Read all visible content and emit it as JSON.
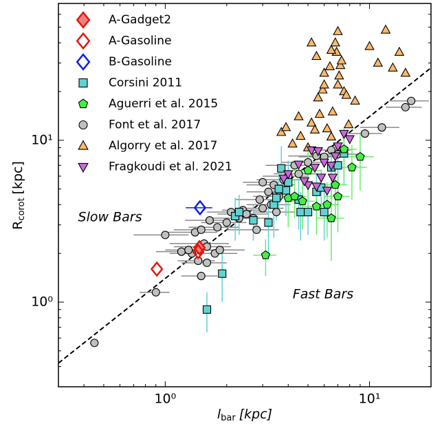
{
  "chart_data": {
    "type": "scatter",
    "xlabel": {
      "main": "l",
      "sub": "bar",
      "unit": "[kpc]"
    },
    "ylabel": {
      "main": "R",
      "sub": "corot",
      "unit": "[kpc]"
    },
    "xscale": "log",
    "yscale": "log",
    "xlim": [
      0.3,
      20
    ],
    "ylim": [
      0.3,
      70
    ],
    "xticks": [
      {
        "value": 1,
        "label": "10⁰"
      },
      {
        "value": 10,
        "label": "10¹"
      }
    ],
    "yticks": [
      {
        "value": 1,
        "label": "10⁰"
      },
      {
        "value": 10,
        "label": "10¹"
      }
    ],
    "xticks_minor": [
      0.4,
      0.5,
      0.6,
      0.7,
      0.8,
      0.9,
      2,
      3,
      4,
      5,
      6,
      7,
      8,
      9
    ],
    "yticks_minor": [
      0.4,
      0.5,
      0.6,
      0.7,
      0.8,
      0.9,
      2,
      3,
      4,
      5,
      6,
      7,
      8,
      9,
      20,
      30,
      40,
      50,
      60
    ],
    "legend": "upper left",
    "annotations": [
      {
        "text": "Slow Bars"
      },
      {
        "text": "Fast Bars"
      }
    ],
    "reference_line": {
      "x": [
        0.3,
        20
      ],
      "y": [
        0.42,
        28
      ],
      "color": "#000000"
    },
    "series": [
      {
        "name": "Font et al. 2017",
        "marker": "circle",
        "color": "#c0c0c0",
        "edgecolor": "#000000",
        "errcolor": "#888888",
        "x": [
          0.45,
          0.9,
          1.2,
          1.35,
          1.4,
          1.45,
          1.5,
          1.5,
          1.55,
          1.6,
          1.6,
          1.65,
          1.75,
          1.8,
          1.85,
          2.0,
          2.1,
          2.3,
          2.4,
          2.5,
          2.7,
          2.8,
          2.9,
          3.0,
          3.0,
          3.2,
          3.3,
          3.4,
          3.5,
          3.6,
          3.8,
          4.0,
          4.3,
          4.5,
          5.0,
          5.5,
          6.0,
          6.5,
          7.0,
          9.5,
          11.5,
          15,
          16,
          1.0,
          1.3
        ],
        "values": [
          0.56,
          1.15,
          2.05,
          2.0,
          2.7,
          1.8,
          1.45,
          2.8,
          2.3,
          1.75,
          2.2,
          3.2,
          2.0,
          2.9,
          2.1,
          3.1,
          3.6,
          3.3,
          3.7,
          3.5,
          3.3,
          2.8,
          4.3,
          5.5,
          3.8,
          4.8,
          4.0,
          5.3,
          3.6,
          4.5,
          5.7,
          6.0,
          7.0,
          6.2,
          7.3,
          8.0,
          7.9,
          8.7,
          8.2,
          11.0,
          12.0,
          16,
          17.5,
          2.6,
          2.1
        ],
        "xerr": [
          0.02,
          0.15,
          0.3,
          0.3,
          0.4,
          0.3,
          0.3,
          0.4,
          0.5,
          0.4,
          0.5,
          0.4,
          0.5,
          0.5,
          0.6,
          0.5,
          0.5,
          0.6,
          0.5,
          0.7,
          0.6,
          0.8,
          0.7,
          0.6,
          0.8,
          0.7,
          0.8,
          0.9,
          0.8,
          0.9,
          1.0,
          1.0,
          1.2,
          1.1,
          1.3,
          1.5,
          1.5,
          1.6,
          1.8,
          2.0,
          2.5,
          3.0,
          3.5,
          0.3,
          0.3
        ]
      },
      {
        "name": "Corsini 2011",
        "marker": "square",
        "color": "#5fd3d3",
        "edgecolor": "#000000",
        "errcolor": "#5fd3d3",
        "x": [
          1.6,
          1.9,
          2.2,
          2.3,
          2.7,
          3.2,
          3.4,
          3.5,
          3.7,
          3.9,
          4.0,
          4.6,
          5.0,
          5.5,
          5.8,
          6.0,
          6.5,
          7.0,
          7.5,
          4.5,
          3.6
        ],
        "values": [
          0.9,
          1.5,
          3.4,
          3.6,
          3.2,
          3.1,
          4.0,
          4.4,
          6.7,
          4.9,
          5.5,
          3.6,
          3.6,
          4.8,
          5.1,
          3.6,
          6.8,
          7.0,
          8.3,
          4.3,
          5.0
        ],
        "yerr": [
          0.25,
          0.5,
          1.0,
          1.0,
          0.8,
          1.2,
          1.5,
          1.2,
          2.5,
          1.5,
          2.0,
          1.2,
          1.0,
          1.5,
          1.5,
          1.2,
          2.5,
          2.0,
          3,
          1.5,
          1.5
        ]
      },
      {
        "name": "Aguerri et al. 2015",
        "marker": "pentagon",
        "color": "#44ee44",
        "edgecolor": "#000000",
        "errcolor": "#66ee66",
        "x": [
          3.1,
          4.0,
          4.3,
          4.7,
          5.5,
          6.5,
          6.8,
          7.0,
          8.2,
          9.0,
          5.0,
          7.5,
          6.2
        ],
        "values": [
          1.95,
          4.4,
          4.5,
          4.2,
          3.9,
          3.3,
          5.3,
          4.5,
          6.8,
          7.9,
          6.5,
          8.8,
          4.0
        ],
        "xerr": [
          0.4,
          0.6,
          0.6,
          0.7,
          0.8,
          1.0,
          1.0,
          1.0,
          1.5,
          1.5,
          0.8,
          1.2,
          0.9
        ],
        "yerr": [
          0.5,
          1.5,
          1.2,
          1.4,
          1.3,
          1.5,
          2,
          1.8,
          2.5,
          3,
          2,
          3,
          1.5
        ]
      },
      {
        "name": "Algorry et al. 2017",
        "marker": "triangle-up",
        "color": "#fdb96a",
        "edgecolor": "#000000",
        "x": [
          3.7,
          3.9,
          4.2,
          4.5,
          4.6,
          5.0,
          5.2,
          5.4,
          5.6,
          5.7,
          5.9,
          6.0,
          6.2,
          6.4,
          6.5,
          6.6,
          6.8,
          6.9,
          7.0,
          7.1,
          7.2,
          7.3,
          7.5,
          7.7,
          7.9,
          8.5,
          10.0,
          11,
          12,
          13,
          14,
          15,
          7.0,
          6.0,
          5.5,
          5.2,
          6.5
        ],
        "values": [
          11.2,
          12.0,
          9.5,
          14.0,
          10.6,
          9.0,
          12.8,
          11.6,
          18.3,
          14.5,
          20.5,
          22.0,
          11.8,
          28.5,
          10.5,
          15,
          40,
          35,
          47,
          25,
          29,
          31,
          20,
          19,
          12.5,
          17.5,
          38,
          30,
          48,
          28,
          35,
          26,
          22,
          26,
          33,
          40,
          36
        ]
      },
      {
        "name": "Fragkoudi et al. 2021",
        "marker": "triangle-down",
        "color": "#cc66dd",
        "edgecolor": "#000000",
        "x": [
          3.8,
          4.0,
          4.5,
          5.0,
          5.2,
          5.4,
          5.5,
          5.8,
          6.0,
          6.2,
          6.5,
          6.8,
          7.0,
          7.5,
          8.0,
          4.8,
          5.6,
          6.6
        ],
        "values": [
          5.8,
          6.2,
          7.1,
          5.3,
          8.7,
          6.8,
          5.2,
          5.9,
          7.3,
          4.9,
          7.0,
          8.0,
          9.2,
          11.0,
          10.2,
          5.6,
          8.6,
          5.9
        ]
      },
      {
        "name": "A-Gadget2",
        "marker": "diamond",
        "color": "#f08080",
        "edgecolor": "#e8150d",
        "x": [
          1.47
        ],
        "values": [
          2.17
        ]
      },
      {
        "name": "A-Gasoline",
        "marker": "diamond",
        "color": "none",
        "edgecolor": "#e8150d",
        "x": [
          0.91,
          1.45
        ],
        "values": [
          1.6,
          2.05
        ]
      },
      {
        "name": "B-Gasoline",
        "marker": "diamond",
        "color": "none",
        "edgecolor": "#0a1ee6",
        "errcolor": "#0a1ee6",
        "x": [
          1.48
        ],
        "values": [
          3.83
        ],
        "xerr": [
          0.22
        ]
      }
    ],
    "legend_order": [
      5,
      6,
      7,
      1,
      2,
      0,
      3,
      4
    ]
  }
}
